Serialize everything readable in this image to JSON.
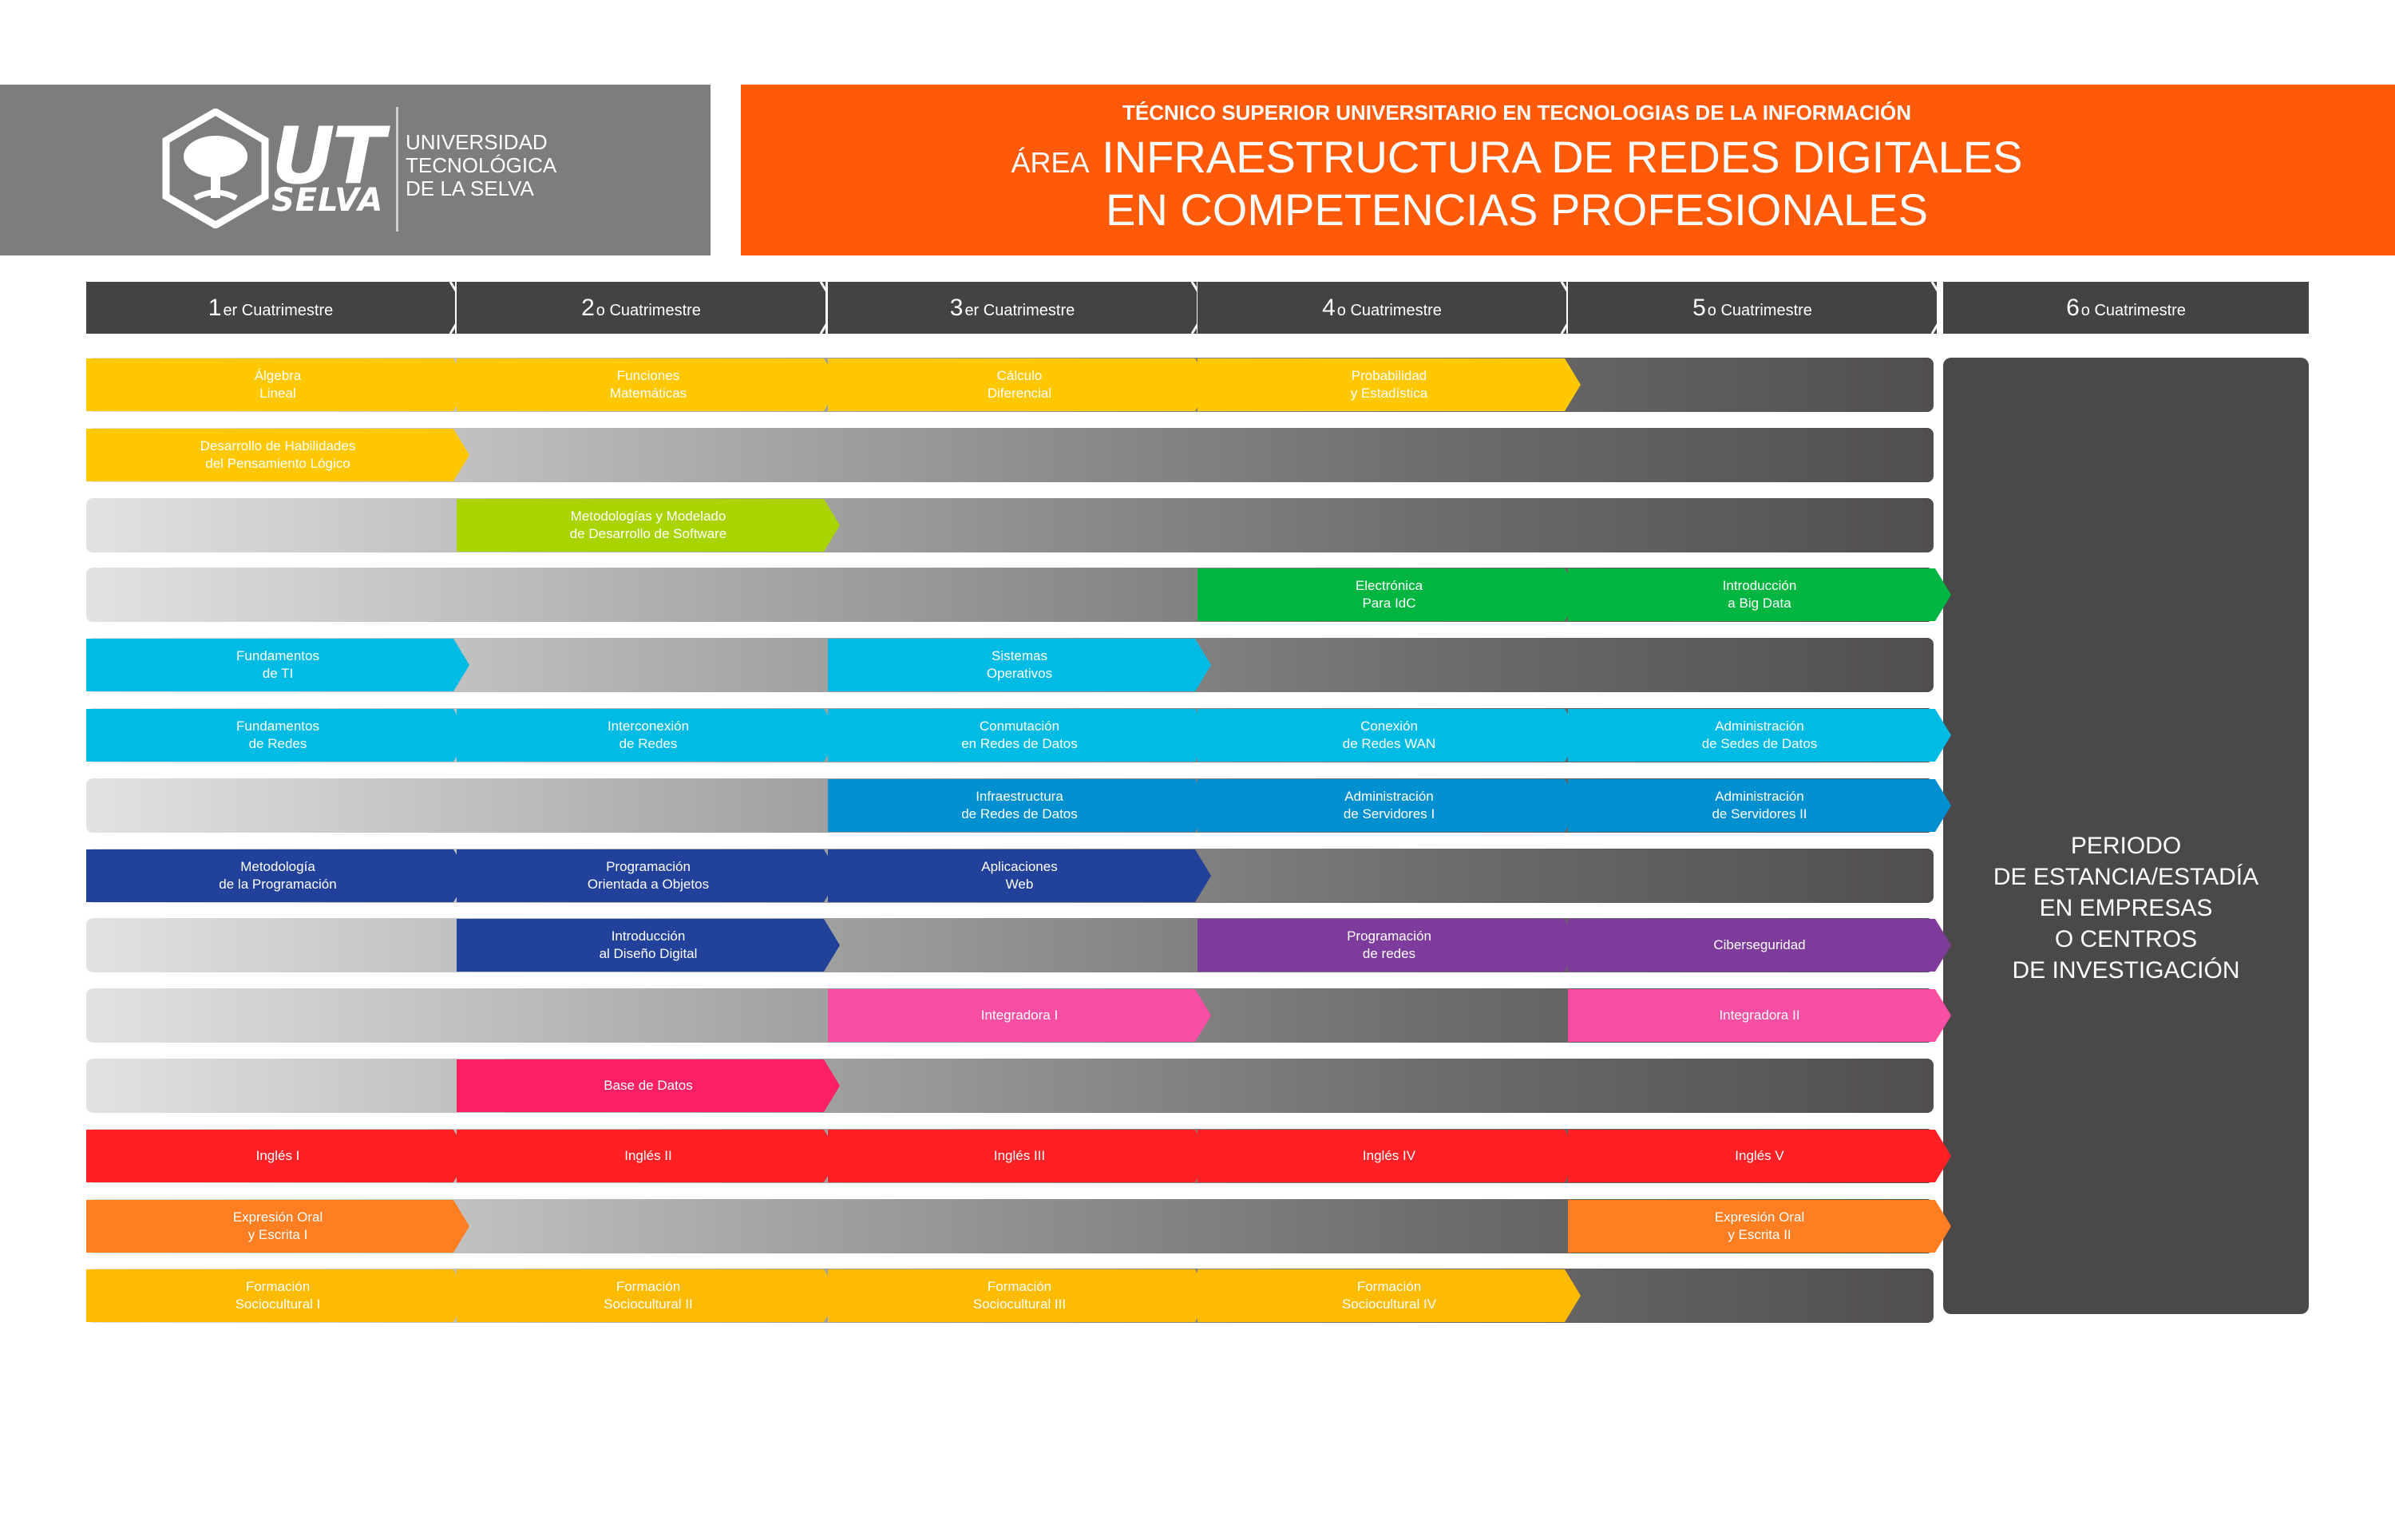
{
  "logo": {
    "brand_top": "UT",
    "brand_bottom": "SELVA",
    "name_lines": [
      "UNIVERSIDAD",
      "TECNOLÓGICA",
      "DE LA SELVA"
    ]
  },
  "title": {
    "program": "TÉCNICO SUPERIOR UNIVERSITARIO EN TECNOLOGIAS DE LA INFORMACIÓN",
    "area_prefix": "ÁREA",
    "line1": "INFRAESTRUCTURA DE REDES DIGITALES",
    "line2": "EN COMPETENCIAS PROFESIONALES"
  },
  "terms": [
    {
      "num": "1",
      "suffix": "er Cuatrimestre"
    },
    {
      "num": "2",
      "suffix": "o Cuatrimestre"
    },
    {
      "num": "3",
      "suffix": "er Cuatrimestre"
    },
    {
      "num": "4",
      "suffix": "o Cuatrimestre"
    },
    {
      "num": "5",
      "suffix": "o Cuatrimestre"
    },
    {
      "num": "6",
      "suffix": "o Cuatrimestre"
    }
  ],
  "rows": [
    {
      "courses": [
        {
          "term": 1,
          "lines": [
            "Álgebra",
            "Lineal"
          ],
          "color": "#ffc800"
        },
        {
          "term": 2,
          "lines": [
            "Funciones",
            "Matemáticas"
          ],
          "color": "#ffc800"
        },
        {
          "term": 3,
          "lines": [
            "Cálculo",
            "Diferencial"
          ],
          "color": "#ffc800"
        },
        {
          "term": 4,
          "lines": [
            "Probabilidad",
            "y Estadística"
          ],
          "color": "#ffc800"
        }
      ]
    },
    {
      "courses": [
        {
          "term": 1,
          "lines": [
            "Desarrollo de Habilidades",
            "del Pensamiento Lógico"
          ],
          "color": "#ffc800"
        }
      ]
    },
    {
      "courses": [
        {
          "term": 2,
          "lines": [
            "Metodologías y Modelado",
            "de Desarrollo de Software"
          ],
          "color": "#a9d400"
        }
      ]
    },
    {
      "courses": [
        {
          "term": 4,
          "lines": [
            "Electrónica",
            "Para IdC"
          ],
          "color": "#00b641"
        },
        {
          "term": 5,
          "lines": [
            "Introducción",
            "a Big Data"
          ],
          "color": "#00b641"
        }
      ]
    },
    {
      "courses": [
        {
          "term": 1,
          "lines": [
            "Fundamentos",
            "de TI"
          ],
          "color": "#00bce4"
        },
        {
          "term": 3,
          "lines": [
            "Sistemas",
            "Operativos"
          ],
          "color": "#00bce4"
        }
      ]
    },
    {
      "courses": [
        {
          "term": 1,
          "lines": [
            "Fundamentos",
            "de Redes"
          ],
          "color": "#00bce4"
        },
        {
          "term": 2,
          "lines": [
            "Interconexión",
            "de Redes"
          ],
          "color": "#00bce4"
        },
        {
          "term": 3,
          "lines": [
            "Conmutación",
            "en Redes de Datos"
          ],
          "color": "#00bce4"
        },
        {
          "term": 4,
          "lines": [
            "Conexión",
            "de Redes WAN"
          ],
          "color": "#00bce4"
        },
        {
          "term": 5,
          "lines": [
            "Administración",
            "de Sedes de Datos"
          ],
          "color": "#00bce4"
        }
      ]
    },
    {
      "courses": [
        {
          "term": 3,
          "lines": [
            "Infraestructura",
            "de Redes de Datos"
          ],
          "color": "#0090d0"
        },
        {
          "term": 4,
          "lines": [
            "Administración",
            "de Servidores I"
          ],
          "color": "#0090d0"
        },
        {
          "term": 5,
          "lines": [
            "Administración",
            "de Servidores II"
          ],
          "color": "#0090d0"
        }
      ]
    },
    {
      "courses": [
        {
          "term": 1,
          "lines": [
            "Metodología",
            "de la Programación"
          ],
          "color": "#22419b"
        },
        {
          "term": 2,
          "lines": [
            "Programación",
            "Orientada a Objetos"
          ],
          "color": "#22419b"
        },
        {
          "term": 3,
          "lines": [
            "Aplicaciones",
            "Web"
          ],
          "color": "#22419b"
        }
      ]
    },
    {
      "courses": [
        {
          "term": 2,
          "lines": [
            "Introducción",
            "al Diseño Digital"
          ],
          "color": "#22419b"
        },
        {
          "term": 4,
          "lines": [
            "Programación",
            "de redes"
          ],
          "color": "#7d3c9b"
        },
        {
          "term": 5,
          "lines": [
            "Ciberseguridad"
          ],
          "color": "#7d3c9b"
        }
      ]
    },
    {
      "courses": [
        {
          "term": 3,
          "lines": [
            "Integradora I"
          ],
          "color": "#f84fa4"
        },
        {
          "term": 5,
          "lines": [
            "Integradora II"
          ],
          "color": "#f84fa4"
        }
      ]
    },
    {
      "courses": [
        {
          "term": 2,
          "lines": [
            "Base de Datos"
          ],
          "color": "#fb1f64"
        }
      ]
    },
    {
      "courses": [
        {
          "term": 1,
          "lines": [
            "Inglés I"
          ],
          "color": "#ff2026"
        },
        {
          "term": 2,
          "lines": [
            "Inglés II"
          ],
          "color": "#ff2026"
        },
        {
          "term": 3,
          "lines": [
            "Inglés III"
          ],
          "color": "#ff2026"
        },
        {
          "term": 4,
          "lines": [
            "Inglés IV"
          ],
          "color": "#ff2026"
        },
        {
          "term": 5,
          "lines": [
            "Inglés V"
          ],
          "color": "#ff2026"
        }
      ]
    },
    {
      "courses": [
        {
          "term": 1,
          "lines": [
            "Expresión Oral",
            "y Escrita I"
          ],
          "color": "#ff7e22"
        },
        {
          "term": 5,
          "lines": [
            "Expresión Oral",
            "y Escrita II"
          ],
          "color": "#ff7e22"
        }
      ]
    },
    {
      "courses": [
        {
          "term": 1,
          "lines": [
            "Formación",
            "Sociocultural I"
          ],
          "color": "#ffbb00"
        },
        {
          "term": 2,
          "lines": [
            "Formación",
            "Sociocultural II"
          ],
          "color": "#ffbb00"
        },
        {
          "term": 3,
          "lines": [
            "Formación",
            "Sociocultural III"
          ],
          "color": "#ffbb00"
        },
        {
          "term": 4,
          "lines": [
            "Formación",
            "Sociocultural IV"
          ],
          "color": "#ffbb00"
        }
      ]
    }
  ],
  "internship": {
    "lines": [
      "PERIODO",
      "DE ESTANCIA/ESTADÍA",
      "EN EMPRESAS",
      "O CENTROS",
      "DE INVESTIGACIÓN"
    ],
    "color": "#4b4849"
  }
}
